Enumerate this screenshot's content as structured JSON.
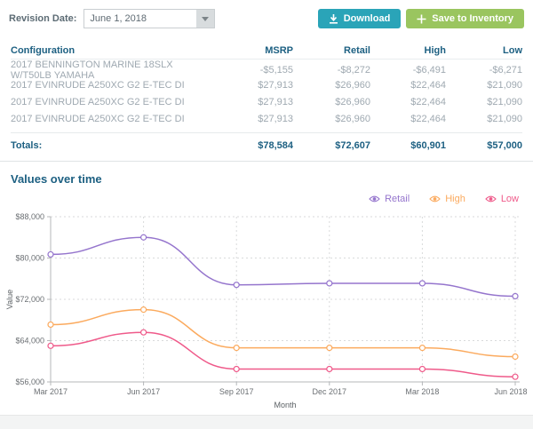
{
  "toolbar": {
    "revision_label": "Revision Date:",
    "revision_value": "June 1, 2018",
    "download_label": "Download",
    "save_label": "Save to Inventory"
  },
  "table": {
    "columns": {
      "config": "Configuration",
      "msrp": "MSRP",
      "retail": "Retail",
      "high": "High",
      "low": "Low"
    },
    "rows": [
      {
        "config": "2017 BENNINGTON MARINE 18SLX W/T50LB YAMAHA",
        "msrp": "-$5,155",
        "retail": "-$8,272",
        "high": "-$6,491",
        "low": "-$6,271"
      },
      {
        "config": "2017 EVINRUDE A250XC G2 E-TEC DI",
        "msrp": "$27,913",
        "retail": "$26,960",
        "high": "$22,464",
        "low": "$21,090"
      },
      {
        "config": "2017 EVINRUDE A250XC G2 E-TEC DI",
        "msrp": "$27,913",
        "retail": "$26,960",
        "high": "$22,464",
        "low": "$21,090"
      },
      {
        "config": "2017 EVINRUDE A250XC G2 E-TEC DI",
        "msrp": "$27,913",
        "retail": "$26,960",
        "high": "$22,464",
        "low": "$21,090"
      }
    ],
    "totals": {
      "label": "Totals:",
      "msrp": "$78,584",
      "retail": "$72,607",
      "high": "$60,901",
      "low": "$57,000"
    }
  },
  "chart_section": {
    "title": "Values over time"
  },
  "chart_data": {
    "type": "line",
    "x": [
      "Mar 2017",
      "Jun 2017",
      "Sep 2017",
      "Dec 2017",
      "Mar 2018",
      "Jun 2018"
    ],
    "series": [
      {
        "name": "Retail",
        "color": "#9575cd",
        "values": [
          80700,
          84000,
          74800,
          75100,
          75100,
          72607
        ]
      },
      {
        "name": "High",
        "color": "#fbaa5e",
        "values": [
          67100,
          70000,
          62600,
          62600,
          62600,
          60901
        ]
      },
      {
        "name": "Low",
        "color": "#ef5a8a",
        "values": [
          63000,
          65600,
          58500,
          58500,
          58500,
          57000
        ]
      }
    ],
    "title": "Values over time",
    "xlabel": "Month",
    "ylabel": "Value",
    "ylim": [
      56000,
      88000
    ],
    "yticks": [
      56000,
      64000,
      72000,
      80000,
      88000
    ],
    "ytick_labels": [
      "$56,000",
      "$64,000",
      "$72,000",
      "$80,000",
      "$88,000"
    ],
    "grid": "dashed",
    "legend_position": "top-right",
    "marker": "open-circle"
  }
}
